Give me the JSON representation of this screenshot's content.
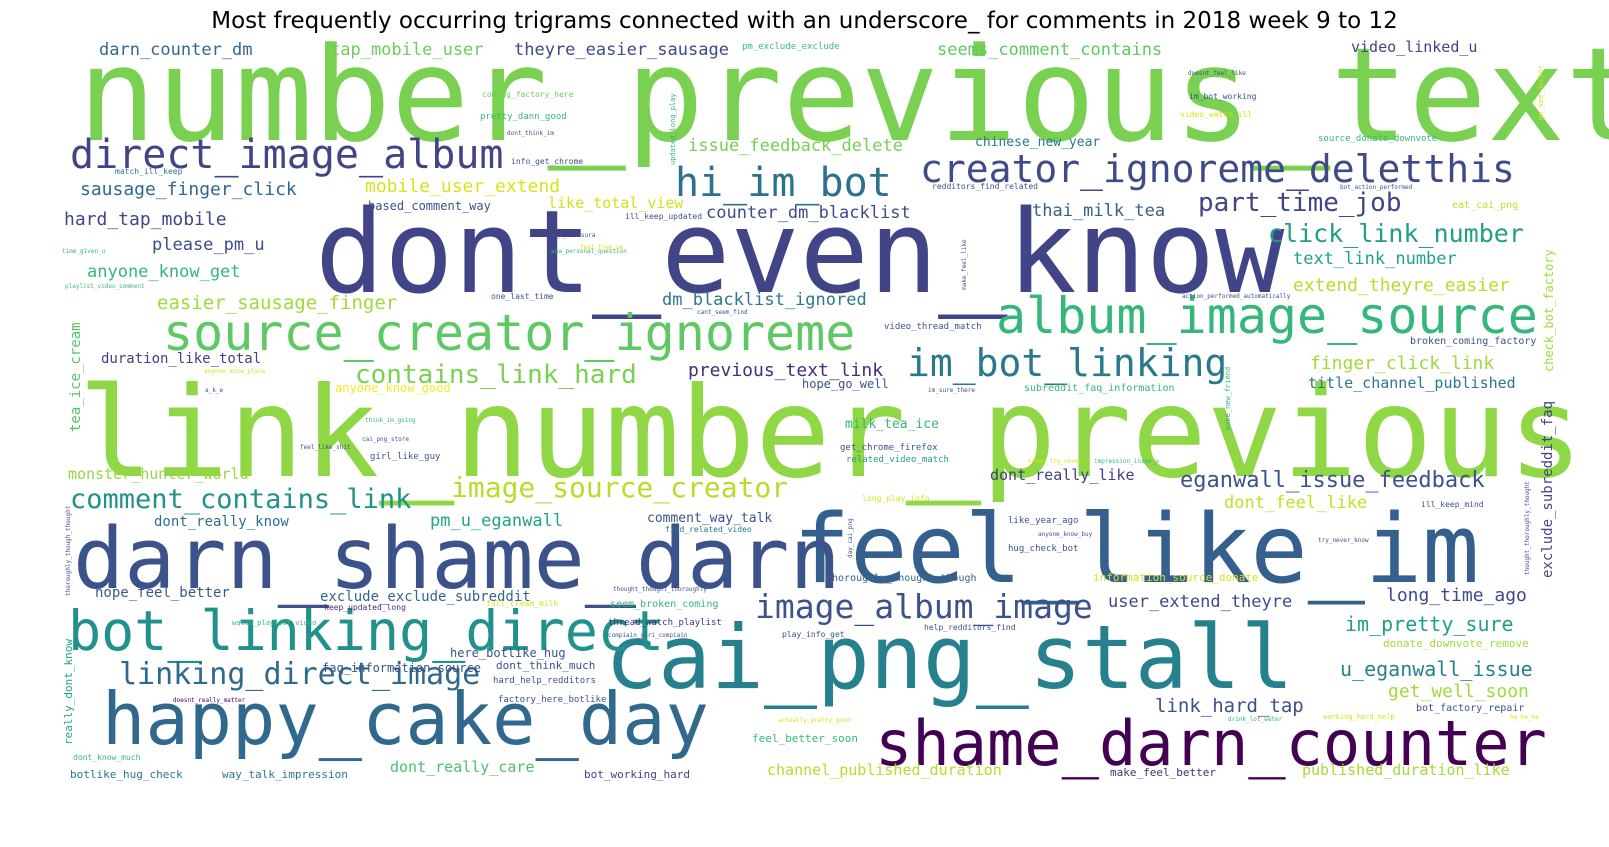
{
  "chart_data": {
    "type": "wordcloud",
    "title": "Most frequently occurring trigrams connected with an underscore_ for comments in 2018 week 9 to 12",
    "words": [
      {
        "text": "number_previous_text",
        "weight": 130,
        "color": "#7ad151"
      },
      {
        "text": "link_number_previous",
        "weight": 125,
        "color": "#8fd744"
      },
      {
        "text": "dont_even_know",
        "weight": 115,
        "color": "#414487"
      },
      {
        "text": "feel_like_im",
        "weight": 95,
        "color": "#355f8d"
      },
      {
        "text": "cai_png_stall",
        "weight": 88,
        "color": "#27808e"
      },
      {
        "text": "darn_shame_darn",
        "weight": 85,
        "color": "#3b528b"
      },
      {
        "text": "happy_cake_day",
        "weight": 72,
        "color": "#31688e"
      },
      {
        "text": "shame_darn_counter",
        "weight": 62,
        "color": "#440154"
      },
      {
        "text": "bot_linking_direct",
        "weight": 55,
        "color": "#21918c"
      },
      {
        "text": "source_creator_ignoreme",
        "weight": 50,
        "color": "#5ec962"
      },
      {
        "text": "album_image_source",
        "weight": 50,
        "color": "#35b779"
      },
      {
        "text": "direct_image_album",
        "weight": 40,
        "color": "#414487"
      },
      {
        "text": "hi_im_bot",
        "weight": 40,
        "color": "#2c728e"
      },
      {
        "text": "creator_ignoreme_deletthis",
        "weight": 38,
        "color": "#3e4a89"
      },
      {
        "text": "im_bot_linking",
        "weight": 38,
        "color": "#2a788e"
      },
      {
        "text": "image_album_image",
        "weight": 33,
        "color": "#3b528b"
      },
      {
        "text": "linking_direct_image",
        "weight": 30,
        "color": "#31688e"
      },
      {
        "text": "comment_contains_link",
        "weight": 27,
        "color": "#21918c"
      },
      {
        "text": "image_source_creator",
        "weight": 28,
        "color": "#b5de2b"
      },
      {
        "text": "contains_link_hard",
        "weight": 26,
        "color": "#7ad151"
      },
      {
        "text": "click_link_number",
        "weight": 25,
        "color": "#1f9e89"
      },
      {
        "text": "part_time_job",
        "weight": 26,
        "color": "#414487"
      },
      {
        "text": "eganwall_issue_feedback",
        "weight": 22,
        "color": "#3b528b"
      },
      {
        "text": "im_pretty_sure",
        "weight": 20,
        "color": "#1f9e89"
      },
      {
        "text": "u_eganwall_issue",
        "weight": 20,
        "color": "#26828e"
      },
      {
        "text": "get_well_soon",
        "weight": 18,
        "color": "#a0da39"
      },
      {
        "text": "long_time_ago",
        "weight": 18,
        "color": "#3e4a89"
      },
      {
        "text": "link_hard_tap",
        "weight": 19,
        "color": "#3b528b"
      },
      {
        "text": "previous_text_link",
        "weight": 18,
        "color": "#472d7b"
      },
      {
        "text": "finger_click_link",
        "weight": 18,
        "color": "#a0da39"
      },
      {
        "text": "extend_theyre_easier",
        "weight": 18,
        "color": "#b5de2b"
      },
      {
        "text": "text_link_number",
        "weight": 17,
        "color": "#1fa187"
      },
      {
        "text": "easier_sausage_finger",
        "weight": 19,
        "color": "#a0da39"
      },
      {
        "text": "anyone_know_get",
        "weight": 17,
        "color": "#35b779"
      },
      {
        "text": "please_pm_u",
        "weight": 17,
        "color": "#3e4a89"
      },
      {
        "text": "hard_tap_mobile",
        "weight": 18,
        "color": "#404688"
      },
      {
        "text": "sausage_finger_click",
        "weight": 18,
        "color": "#31688e"
      },
      {
        "text": "mobile_user_extend",
        "weight": 18,
        "color": "#d8e219"
      },
      {
        "text": "issue_feedback_delete",
        "weight": 17,
        "color": "#75d054"
      },
      {
        "text": "counter_dm_blacklist",
        "weight": 17,
        "color": "#3e4a89"
      },
      {
        "text": "thai_milk_tea",
        "weight": 17,
        "color": "#355f8d"
      },
      {
        "text": "dm_blacklist_ignored",
        "weight": 17,
        "color": "#2a788e"
      },
      {
        "text": "pm_u_eganwall",
        "weight": 17,
        "color": "#20a386"
      },
      {
        "text": "darn_counter_dm",
        "weight": 17,
        "color": "#31688e"
      },
      {
        "text": "tap_mobile_user",
        "weight": 17,
        "color": "#6ccd5a"
      },
      {
        "text": "theyre_easier_sausage",
        "weight": 17,
        "color": "#3e4a89"
      },
      {
        "text": "seems_comment_contains",
        "weight": 17,
        "color": "#5ec962"
      },
      {
        "text": "video_linked_u",
        "weight": 15,
        "color": "#414487"
      },
      {
        "text": "user_extend_theyre",
        "weight": 17,
        "color": "#3e4a89"
      },
      {
        "text": "dont_feel_like",
        "weight": 17,
        "color": "#c2df23"
      },
      {
        "text": "dont_really_like",
        "weight": 15,
        "color": "#433e85"
      },
      {
        "text": "title_channel_published",
        "weight": 15,
        "color": "#2a788e"
      },
      {
        "text": "channel_published_duration",
        "weight": 15,
        "color": "#b5de2b"
      },
      {
        "text": "published_duration_like",
        "weight": 15,
        "color": "#a5db36"
      },
      {
        "text": "dont_really_care",
        "weight": 15,
        "color": "#4ac16d"
      },
      {
        "text": "exclude_exclude_subreddit",
        "weight": 14,
        "color": "#31688e"
      },
      {
        "text": "hope_feel_better",
        "weight": 14,
        "color": "#38588c"
      },
      {
        "text": "like_total_view",
        "weight": 15,
        "color": "#d2e21b"
      },
      {
        "text": "duration_like_total",
        "weight": 14,
        "color": "#433e85"
      },
      {
        "text": "monster_hunter_world",
        "weight": 15,
        "color": "#95d840"
      },
      {
        "text": "dont_really_know",
        "weight": 14,
        "color": "#2d708e"
      },
      {
        "text": "comment_way_talk",
        "weight": 13,
        "color": "#3b528b"
      },
      {
        "text": "tea_ice_cream",
        "weight": 14,
        "color": "#54c568",
        "rotate": true
      },
      {
        "text": "exclude_subreddit_faq",
        "weight": 14,
        "color": "#414487",
        "rotate": true
      },
      {
        "text": "check_bot_factory",
        "weight": 12,
        "color": "#a0da39",
        "rotate": true
      },
      {
        "text": "really_dont_know",
        "weight": 11,
        "color": "#22a884",
        "rotate": true
      },
      {
        "text": "chinese_new_year",
        "weight": 13,
        "color": "#2a788e"
      },
      {
        "text": "milk_tea_ice",
        "weight": 13,
        "color": "#35b779"
      },
      {
        "text": "anyone_know_good",
        "weight": 12,
        "color": "#fde725"
      },
      {
        "text": "based_comment_way",
        "weight": 12,
        "color": "#3b528b"
      },
      {
        "text": "hope_go_well",
        "weight": 12,
        "color": "#3b528b"
      },
      {
        "text": "faq_information_source",
        "weight": 12,
        "color": "#3b528b"
      },
      {
        "text": "here_botlike_hug",
        "weight": 12,
        "color": "#3b528b"
      },
      {
        "text": "dont_think_much",
        "weight": 11,
        "color": "#3b528b"
      },
      {
        "text": "botlike_hug_check",
        "weight": 11,
        "color": "#2a788e"
      },
      {
        "text": "way_talk_impression",
        "weight": 11,
        "color": "#2a788e"
      },
      {
        "text": "bot_working_hard",
        "weight": 11,
        "color": "#433e85"
      },
      {
        "text": "make_feel_better",
        "weight": 11,
        "color": "#472d7b"
      },
      {
        "text": "feel_better_soon",
        "weight": 11,
        "color": "#3aba76"
      },
      {
        "text": "information_source_donate",
        "weight": 11,
        "color": "#d8e219"
      },
      {
        "text": "donate_downvote_remove",
        "weight": 11,
        "color": "#a0da39"
      },
      {
        "text": "broken_coming_factory",
        "weight": 10,
        "color": "#3b528b"
      },
      {
        "text": "bot_factory_repair",
        "weight": 10,
        "color": "#3b528b"
      },
      {
        "text": "thoroughly_thought_though",
        "weight": 10,
        "color": "#31688e"
      },
      {
        "text": "seem_broken_coming",
        "weight": 10,
        "color": "#35b779"
      },
      {
        "text": "subreddit_faq_information",
        "weight": 10,
        "color": "#35b779"
      },
      {
        "text": "related_video_match",
        "weight": 9,
        "color": "#1f9e89"
      },
      {
        "text": "get_chrome_firefox",
        "weight": 9,
        "color": "#3b528b"
      },
      {
        "text": "video_thread_match",
        "weight": 9,
        "color": "#3b528b"
      },
      {
        "text": "hug_check_bot",
        "weight": 9,
        "color": "#3b528b"
      },
      {
        "text": "like_year_ago",
        "weight": 9,
        "color": "#3b528b"
      },
      {
        "text": "girl_like_guy",
        "weight": 9,
        "color": "#3b528b"
      },
      {
        "text": "thread_watch_playlist",
        "weight": 9,
        "color": "#472d7b"
      },
      {
        "text": "hard_help_redditors",
        "weight": 9,
        "color": "#3b528b"
      },
      {
        "text": "factory_here_botlike",
        "weight": 9,
        "color": "#3b528b"
      },
      {
        "text": "keep_updated_long",
        "weight": 8,
        "color": "#472d7b"
      },
      {
        "text": "play_info_get",
        "weight": 8,
        "color": "#3b528b"
      },
      {
        "text": "help_redditors_find",
        "weight": 8,
        "color": "#3b528b"
      },
      {
        "text": "find_related_video",
        "weight": 8,
        "color": "#2a788e"
      },
      {
        "text": "full_cream_milk",
        "weight": 8,
        "color": "#d8e219"
      },
      {
        "text": "watch_playlist_video",
        "weight": 7,
        "color": "#35b779"
      },
      {
        "text": "pm_exclude_exclude",
        "weight": 9,
        "color": "#3aba76"
      },
      {
        "text": "pretty_dann_good",
        "weight": 9,
        "color": "#35b779"
      },
      {
        "text": "coming_factory_here",
        "weight": 8,
        "color": "#6ccd5a"
      },
      {
        "text": "info_get_chrome",
        "weight": 8,
        "color": "#3b528b"
      },
      {
        "text": "match_ill_keep",
        "weight": 8,
        "color": "#2a788e"
      },
      {
        "text": "im_bot_working",
        "weight": 8,
        "color": "#3b528b"
      },
      {
        "text": "video_watch_ill",
        "weight": 8,
        "color": "#d8e219"
      },
      {
        "text": "source_donate_downvote",
        "weight": 9,
        "color": "#35b779"
      },
      {
        "text": "redditors_find_related",
        "weight": 8,
        "color": "#3b528b"
      },
      {
        "text": "eat_cai_png",
        "weight": 10,
        "color": "#c2df23"
      },
      {
        "text": "ill_keep_updated",
        "weight": 8,
        "color": "#3b528b"
      },
      {
        "text": "one_last_time",
        "weight": 8,
        "color": "#3b528b"
      },
      {
        "text": "long_play_info",
        "weight": 8,
        "color": "#d8e219"
      },
      {
        "text": "ill_keep_mind",
        "weight": 8,
        "color": "#3b528b"
      },
      {
        "text": "working_hard_help",
        "weight": 7,
        "color": "#d8e219"
      },
      {
        "text": "drink_lot_water",
        "weight": 6,
        "color": "#35b779"
      },
      {
        "text": "actually_pretty_good",
        "weight": 6,
        "color": "#d8e219"
      },
      {
        "text": "doesnt_feel_like",
        "weight": 6,
        "color": "#3b528b"
      },
      {
        "text": "bot_action_performed",
        "weight": 6,
        "color": "#3b528b"
      },
      {
        "text": "action_performed_automatically",
        "weight": 6,
        "color": "#3b528b"
      },
      {
        "text": "cant_seem_find",
        "weight": 6,
        "color": "#3b528b"
      },
      {
        "text": "im_sure_there",
        "weight": 6,
        "color": "#3b528b"
      },
      {
        "text": "u_u_solasura",
        "weight": 6,
        "color": "#3b528b"
      },
      {
        "text": "ama_personal_question",
        "weight": 6,
        "color": "#35b779"
      },
      {
        "text": "feel_free_pe",
        "weight": 6,
        "color": "#d8e219"
      },
      {
        "text": "playlist_video_comment",
        "weight": 6,
        "color": "#3aba76"
      },
      {
        "text": "time_given_u",
        "weight": 6,
        "color": "#35b779"
      },
      {
        "text": "anyone_know_place",
        "weight": 6,
        "color": "#d8e219"
      },
      {
        "text": "think_im_going",
        "weight": 6,
        "color": "#35b779"
      },
      {
        "text": "cai_png_store",
        "weight": 6,
        "color": "#3b528b"
      },
      {
        "text": "feel_like_shit",
        "weight": 6,
        "color": "#3b528b"
      },
      {
        "text": "never_try_never",
        "weight": 6,
        "color": "#d8e219"
      },
      {
        "text": "impression_inspo_u",
        "weight": 6,
        "color": "#35b779"
      },
      {
        "text": "anyone_know_buy",
        "weight": 6,
        "color": "#3b528b"
      },
      {
        "text": "try_never_know",
        "weight": 6,
        "color": "#3b528b"
      },
      {
        "text": "compiain_giri_compiain",
        "weight": 6,
        "color": "#3b528b"
      },
      {
        "text": "thought_thought_thoroughly",
        "weight": 6,
        "color": "#3b528b"
      },
      {
        "text": "doesnt_really_matter",
        "weight": 6,
        "color": "#440154"
      },
      {
        "text": "dont_know_much",
        "weight": 8,
        "color": "#3aba76"
      },
      {
        "text": "dont_think_im",
        "weight": 6,
        "color": "#3b528b"
      },
      {
        "text": "a_k_e",
        "weight": 6,
        "color": "#3b528b"
      },
      {
        "text": "he_he_he",
        "weight": 6,
        "color": "#d8e219"
      },
      {
        "text": "updated_long_play",
        "weight": 7,
        "color": "#35b779",
        "rotate": true
      },
      {
        "text": "go_see_doctor",
        "weight": 7,
        "color": "#d8e219",
        "rotate": true
      },
      {
        "text": "make_feel_like",
        "weight": 6,
        "color": "#3b528b",
        "rotate": true
      },
      {
        "text": "make_new_friend",
        "weight": 7,
        "color": "#35b779",
        "rotate": true
      },
      {
        "text": "day_cai_png",
        "weight": 6,
        "color": "#3b528b",
        "rotate": true
      },
      {
        "text": "thought_thoroughly_thought",
        "weight": 6,
        "color": "#3b528b",
        "rotate": true
      },
      {
        "text": "thoroughly_though_thought",
        "weight": 6,
        "color": "#3b528b",
        "rotate": true
      }
    ]
  }
}
